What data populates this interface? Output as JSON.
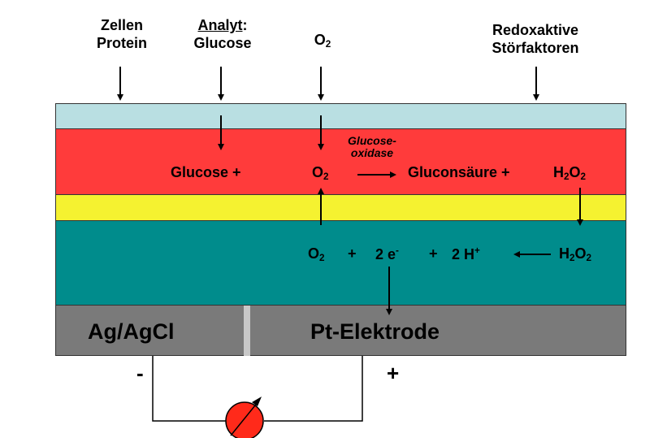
{
  "top_labels": {
    "cells_line1": "Zellen",
    "cells_line2": "Protein",
    "analyte_word": "Analyt",
    "analyte_colon": ":",
    "analyte_line2": "Glucose",
    "oxygen_base": "O",
    "oxygen_sub": "2",
    "interferents_line1": "Redoxaktive",
    "interferents_line2": "Störfaktoren"
  },
  "enzyme_layer": {
    "glucose_plus": "Glucose +",
    "o2_base": "O",
    "o2_sub": "2",
    "enzyme_line1": "Glucose-",
    "enzyme_line2": "oxidase",
    "product": "Gluconsäure +",
    "h2o2_h": "H",
    "h2o2_sub1": "2",
    "h2o2_o": "O",
    "h2o2_sub2": "2"
  },
  "electrode_reaction": {
    "o2_base": "O",
    "o2_sub": "2",
    "plus1": "+",
    "electrons": "2 e",
    "electron_charge": "-",
    "plus2": "+",
    "protons": "2 H",
    "proton_charge": "+",
    "h2o2_h": "H",
    "h2o2_sub1": "2",
    "h2o2_o": "O",
    "h2o2_sub2": "2"
  },
  "electrodes": {
    "reference": "Ag/AgCl",
    "working": "Pt-Elektrode",
    "minus": "-",
    "plus": "+"
  },
  "colors": {
    "outer_membrane": "#b9dfe2",
    "enzyme_layer": "#ff3b3b",
    "inner_membrane": "#f5f230",
    "electrolyte": "#008c8c",
    "electrode_base": "#7a7a7a",
    "meter": "#ff2a1a"
  }
}
